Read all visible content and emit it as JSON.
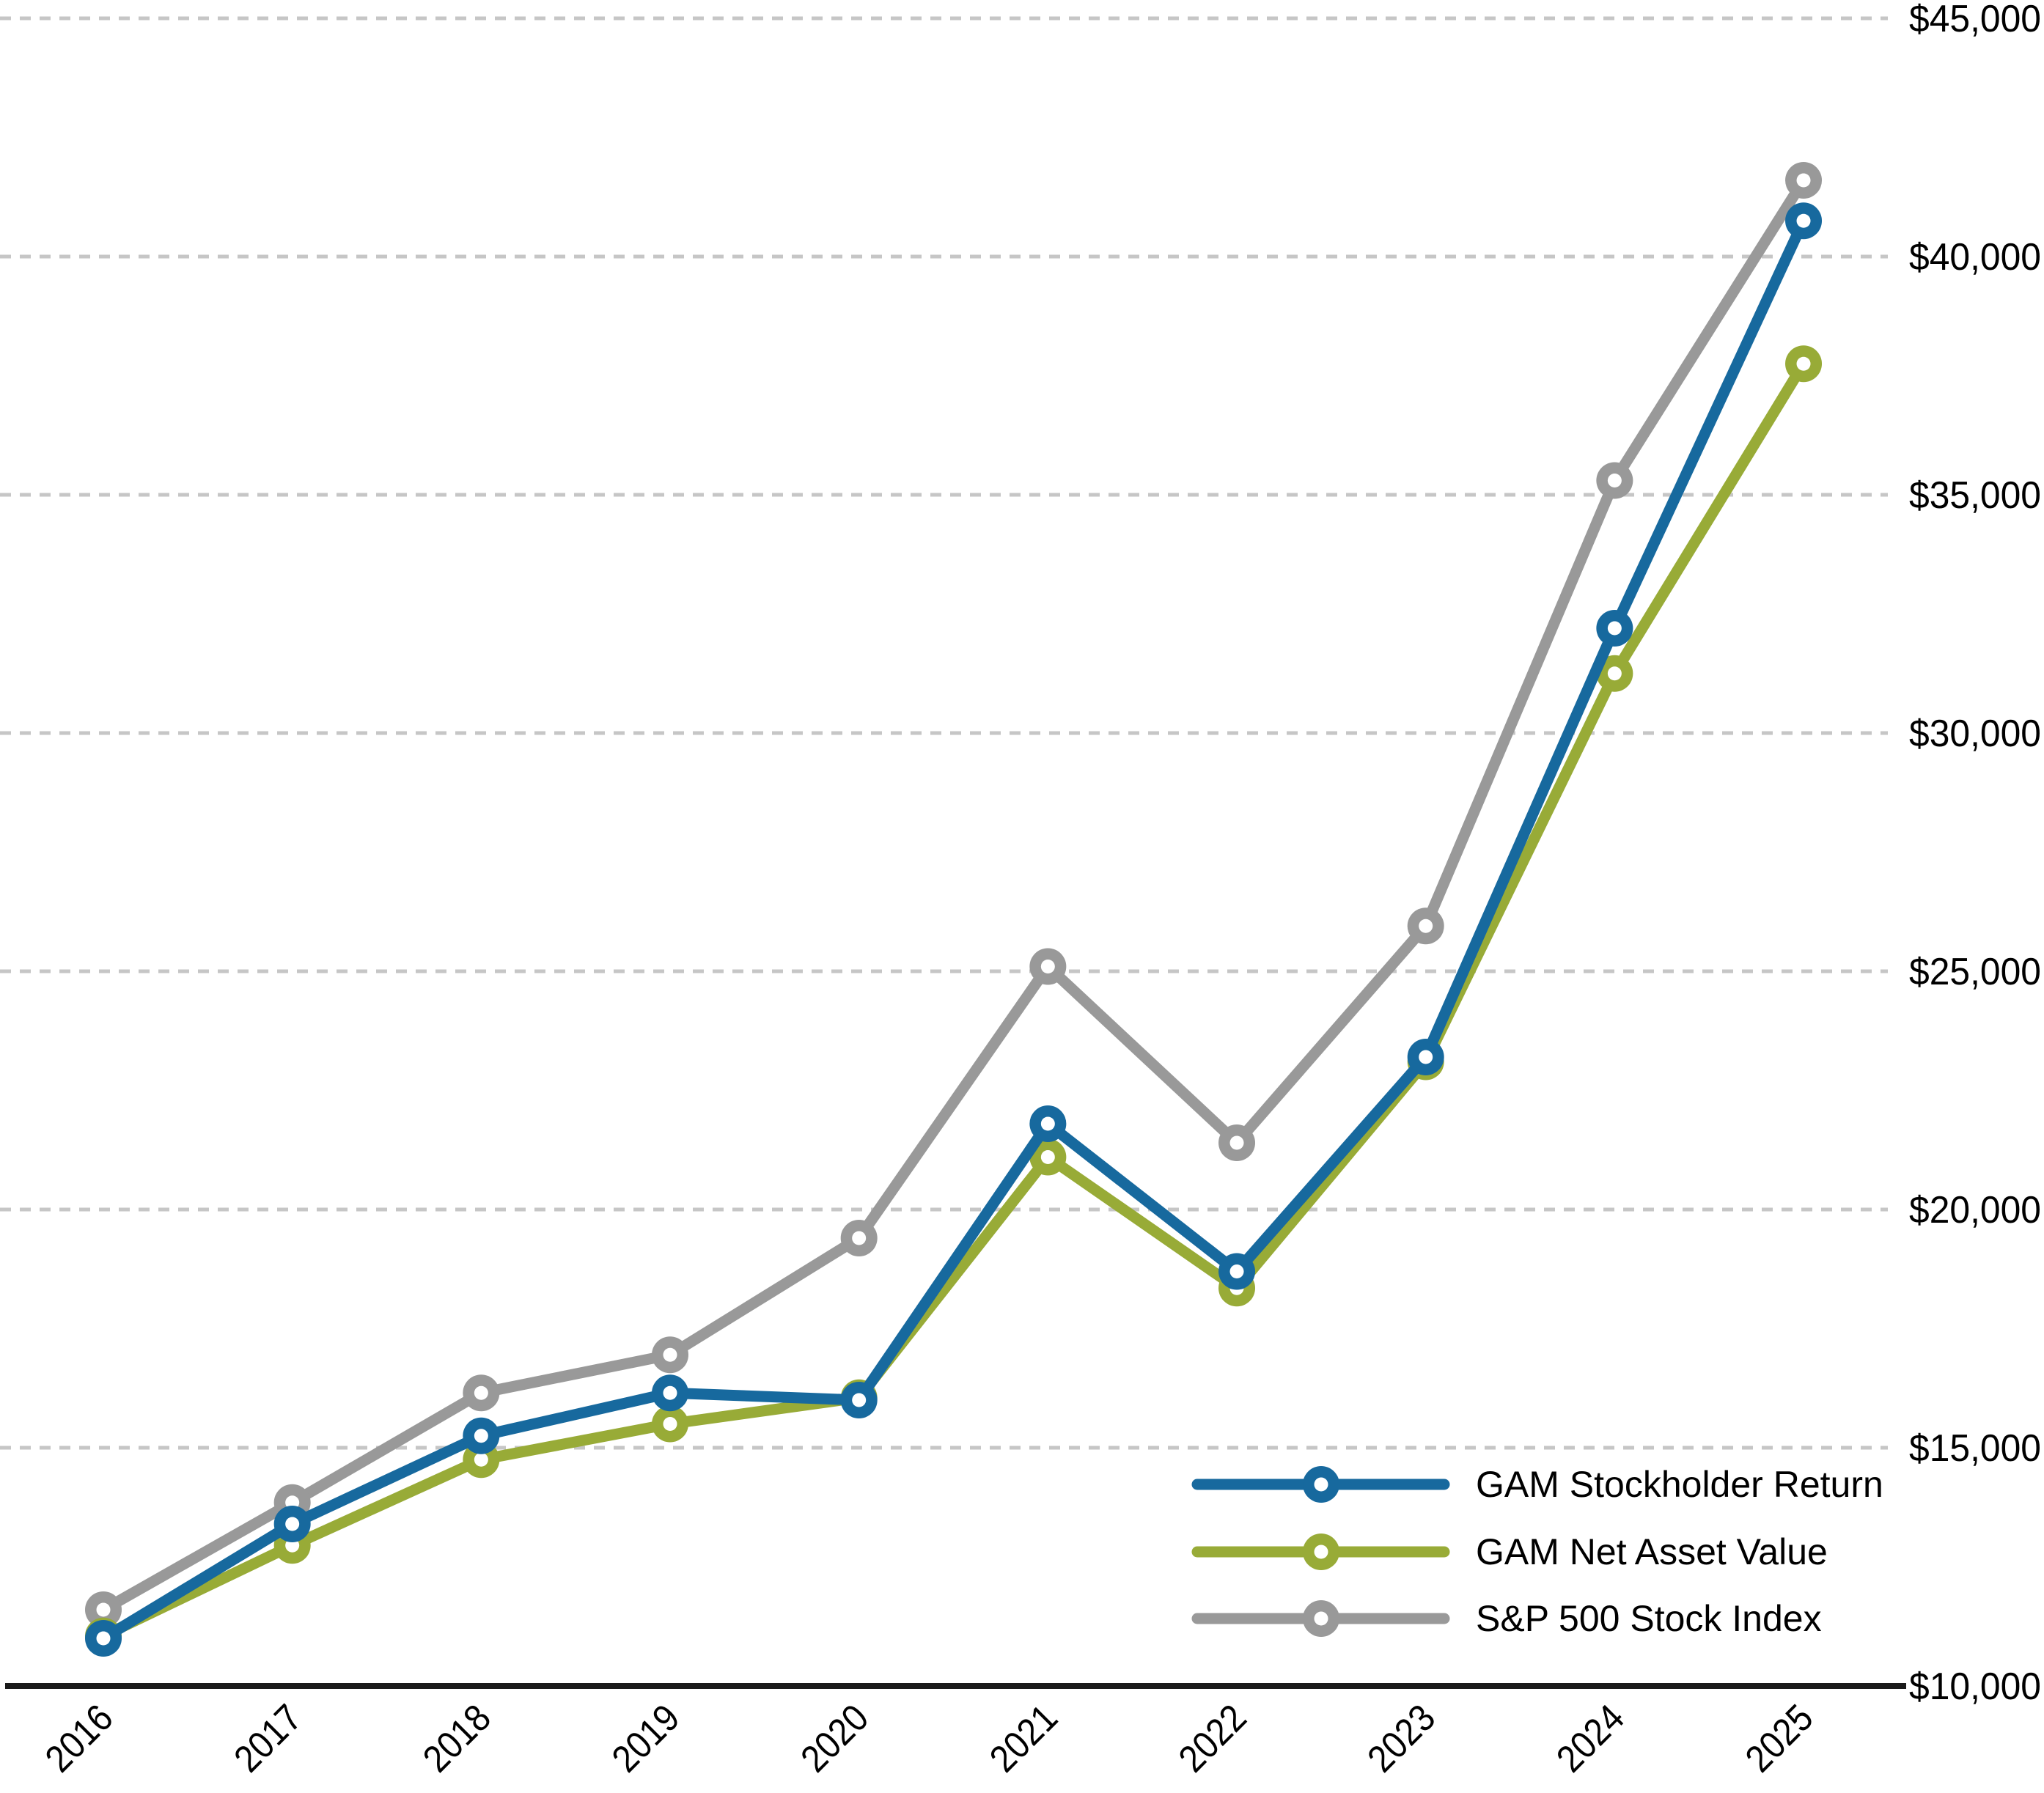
{
  "chart_data": {
    "type": "line",
    "title": "",
    "xlabel": "",
    "ylabel": "",
    "categories": [
      "2016",
      "2017",
      "2018",
      "2019",
      "2020",
      "2021",
      "2022",
      "2023",
      "2024",
      "2025"
    ],
    "series": [
      {
        "name": "GAM Stockholder Return",
        "color": "#17699E",
        "values": [
          11000,
          13400,
          15250,
          16150,
          16000,
          21800,
          18700,
          23200,
          32200,
          40750
        ]
      },
      {
        "name": "GAM Net Asset Value",
        "color": "#98AB37",
        "values": [
          11050,
          12950,
          14750,
          15500,
          16050,
          21100,
          18350,
          23100,
          31250,
          37750
        ]
      },
      {
        "name": "S&P 500 Stock Index",
        "color": "#999999",
        "values": [
          11600,
          13850,
          16150,
          16950,
          19400,
          25100,
          21400,
          25950,
          35300,
          41600
        ]
      }
    ],
    "y_axis": {
      "min": 10000,
      "max": 45000,
      "step": 5000,
      "ticks": [
        {
          "value": 10000,
          "label": "$10,000"
        },
        {
          "value": 15000,
          "label": "$15,000"
        },
        {
          "value": 20000,
          "label": "$20,000"
        },
        {
          "value": 25000,
          "label": "$25,000"
        },
        {
          "value": 30000,
          "label": "$30,000"
        },
        {
          "value": 35000,
          "label": "$35,000"
        },
        {
          "value": 40000,
          "label": "$40,000"
        },
        {
          "value": 45000,
          "label": "$45,000"
        }
      ],
      "tick_side": "right",
      "grid": "dashed"
    },
    "x_axis": {
      "tick_rotation_deg": 45,
      "baseline_value": 10000
    },
    "legend": {
      "position": "bottom-right",
      "items": [
        "GAM Stockholder Return",
        "GAM Net Asset Value",
        "S&P 500 Stock Index"
      ]
    },
    "colors": {
      "gridline": "#C6C6C6",
      "axis": "#1A1A1A",
      "text": "#000000",
      "background": "#FFFFFF"
    },
    "ylim": [
      10000,
      45000
    ],
    "marker_style": "ring"
  }
}
